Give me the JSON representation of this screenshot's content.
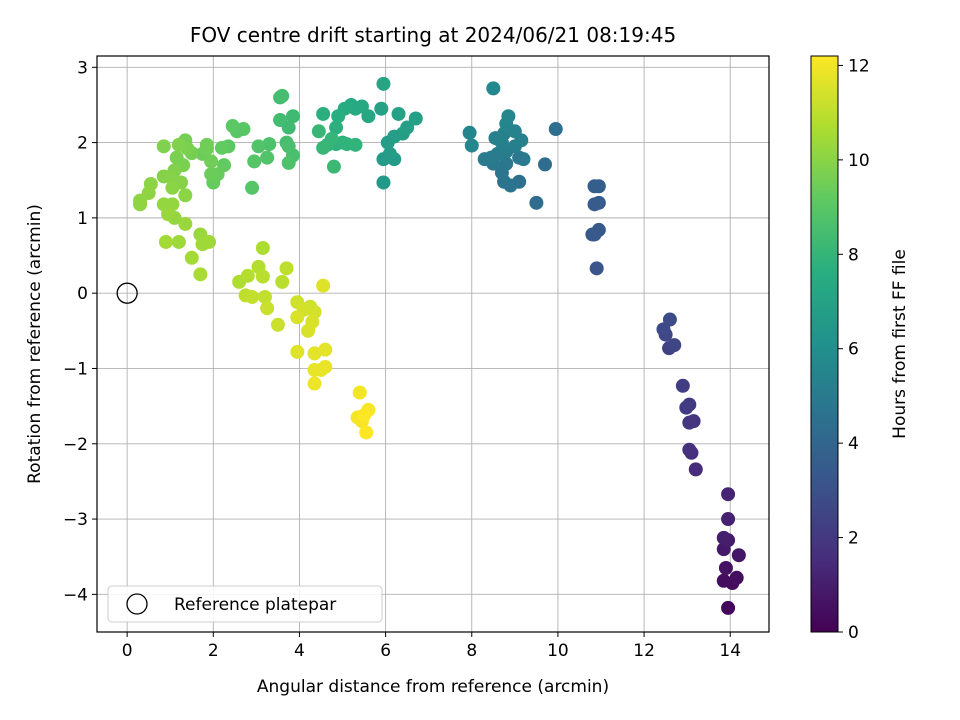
{
  "chart_data": {
    "type": "scatter",
    "title": "FOV centre drift starting at 2024/06/21 08:19:45",
    "xlabel": "Angular distance from reference (arcmin)",
    "ylabel": "Rotation from reference (arcmin)",
    "xlim": [
      -0.7,
      14.9
    ],
    "ylim": [
      -4.5,
      3.15
    ],
    "xticks": [
      0,
      2,
      4,
      6,
      8,
      10,
      12,
      14
    ],
    "yticks": [
      -4,
      -3,
      -2,
      -1,
      0,
      1,
      2,
      3
    ],
    "xtick_labels": [
      "0",
      "2",
      "4",
      "6",
      "8",
      "10",
      "12",
      "14"
    ],
    "ytick_labels": [
      "−4",
      "−3",
      "−2",
      "−1",
      "0",
      "1",
      "2",
      "3"
    ],
    "grid": true,
    "colormap": "viridis",
    "colorbar": {
      "label": "Hours from first FF file",
      "range": [
        0,
        12.2
      ],
      "ticks": [
        0,
        2,
        4,
        6,
        8,
        10,
        12
      ],
      "tick_labels": [
        "0",
        "2",
        "4",
        "6",
        "8",
        "10",
        "12"
      ]
    },
    "reference": {
      "name": "Reference platepar",
      "x": 0,
      "y": 0
    },
    "legend": {
      "location": "lower-left",
      "entries": [
        "Reference platepar"
      ]
    },
    "series": [
      {
        "name": "FOV centre",
        "points": [
          [
            13.95,
            -4.18,
            0.2
          ],
          [
            14.05,
            -3.85,
            0.3
          ],
          [
            13.85,
            -3.82,
            0.4
          ],
          [
            14.15,
            -3.78,
            0.5
          ],
          [
            13.9,
            -3.65,
            0.6
          ],
          [
            14.2,
            -3.48,
            0.7
          ],
          [
            13.85,
            -3.4,
            0.8
          ],
          [
            13.95,
            -3.28,
            0.9
          ],
          [
            13.85,
            -3.25,
            1.0
          ],
          [
            13.95,
            -3.0,
            1.1
          ],
          [
            13.95,
            -2.67,
            1.2
          ],
          [
            13.2,
            -2.34,
            1.5
          ],
          [
            13.1,
            -2.12,
            1.6
          ],
          [
            13.05,
            -2.08,
            1.7
          ],
          [
            13.15,
            -1.7,
            1.8
          ],
          [
            13.05,
            -1.72,
            1.9
          ],
          [
            13.05,
            -1.48,
            2.0
          ],
          [
            12.98,
            -1.52,
            2.1
          ],
          [
            12.9,
            -1.23,
            2.2
          ],
          [
            12.58,
            -0.73,
            2.4
          ],
          [
            12.7,
            -0.69,
            2.5
          ],
          [
            12.5,
            -0.55,
            2.6
          ],
          [
            12.45,
            -0.48,
            2.7
          ],
          [
            12.6,
            -0.35,
            2.8
          ],
          [
            10.9,
            0.33,
            3.2
          ],
          [
            10.85,
            0.78,
            3.3
          ],
          [
            10.95,
            0.84,
            3.4
          ],
          [
            10.8,
            0.78,
            3.4
          ],
          [
            10.85,
            1.18,
            3.5
          ],
          [
            10.95,
            1.2,
            3.5
          ],
          [
            10.85,
            1.42,
            3.6
          ],
          [
            10.95,
            1.42,
            3.6
          ],
          [
            9.5,
            1.2,
            4.3
          ],
          [
            9.7,
            1.71,
            4.3
          ],
          [
            9.95,
            2.18,
            4.4
          ],
          [
            9.1,
            1.48,
            4.5
          ],
          [
            8.9,
            1.43,
            4.6
          ],
          [
            8.75,
            1.48,
            4.6
          ],
          [
            8.7,
            1.6,
            4.7
          ],
          [
            8.8,
            1.72,
            4.8
          ],
          [
            8.5,
            1.72,
            4.9
          ],
          [
            8.3,
            1.78,
            5.0
          ],
          [
            8.45,
            1.8,
            5.0
          ],
          [
            9.2,
            1.78,
            5.0
          ],
          [
            9.1,
            1.8,
            4.9
          ],
          [
            8.6,
            1.85,
            5.1
          ],
          [
            8.8,
            1.88,
            5.1
          ],
          [
            9.0,
            1.95,
            5.2
          ],
          [
            8.7,
            2.0,
            5.2
          ],
          [
            9.15,
            2.03,
            5.3
          ],
          [
            8.55,
            2.06,
            5.3
          ],
          [
            8.75,
            2.12,
            5.3
          ],
          [
            9.0,
            2.15,
            5.4
          ],
          [
            7.95,
            2.13,
            5.5
          ],
          [
            8.0,
            1.96,
            5.6
          ],
          [
            8.8,
            2.25,
            5.5
          ],
          [
            8.85,
            2.35,
            5.6
          ],
          [
            8.5,
            2.72,
            5.7
          ],
          [
            5.95,
            1.47,
            6.5
          ],
          [
            5.95,
            1.78,
            6.6
          ],
          [
            6.2,
            1.78,
            6.6
          ],
          [
            6.1,
            1.85,
            6.7
          ],
          [
            6.05,
            2.0,
            6.7
          ],
          [
            6.2,
            2.08,
            6.8
          ],
          [
            6.4,
            2.12,
            6.8
          ],
          [
            6.5,
            2.2,
            6.9
          ],
          [
            6.7,
            2.32,
            6.9
          ],
          [
            6.3,
            2.38,
            7.0
          ],
          [
            5.9,
            2.45,
            7.0
          ],
          [
            5.95,
            2.78,
            7.1
          ],
          [
            5.6,
            2.35,
            7.2
          ],
          [
            5.45,
            2.48,
            7.3
          ],
          [
            5.3,
            2.45,
            7.4
          ],
          [
            5.2,
            2.5,
            7.4
          ],
          [
            5.05,
            2.45,
            7.5
          ],
          [
            4.9,
            2.35,
            7.6
          ],
          [
            4.55,
            2.38,
            7.7
          ],
          [
            4.85,
            2.2,
            7.7
          ],
          [
            4.85,
            1.98,
            7.8
          ],
          [
            5.0,
            2.0,
            7.8
          ],
          [
            5.1,
            1.98,
            7.9
          ],
          [
            5.3,
            1.97,
            7.9
          ],
          [
            4.75,
            2.05,
            8.0
          ],
          [
            4.65,
            1.97,
            8.0
          ],
          [
            4.55,
            1.93,
            8.1
          ],
          [
            4.45,
            2.15,
            8.1
          ],
          [
            4.8,
            1.68,
            8.2
          ],
          [
            3.85,
            2.35,
            8.3
          ],
          [
            3.75,
            2.2,
            8.3
          ],
          [
            3.55,
            2.3,
            8.4
          ],
          [
            3.55,
            2.6,
            8.4
          ],
          [
            3.6,
            2.62,
            8.5
          ],
          [
            3.7,
            2.0,
            8.5
          ],
          [
            3.75,
            1.95,
            8.6
          ],
          [
            3.85,
            1.83,
            8.6
          ],
          [
            3.75,
            1.73,
            8.7
          ],
          [
            3.3,
            1.98,
            8.7
          ],
          [
            3.25,
            1.8,
            8.8
          ],
          [
            3.05,
            1.95,
            8.8
          ],
          [
            2.95,
            1.75,
            8.9
          ],
          [
            2.9,
            1.4,
            8.9
          ],
          [
            2.7,
            2.18,
            9.0
          ],
          [
            2.55,
            2.15,
            9.0
          ],
          [
            2.45,
            2.22,
            9.1
          ],
          [
            2.35,
            1.95,
            9.1
          ],
          [
            2.2,
            1.93,
            9.2
          ],
          [
            2.25,
            1.7,
            9.2
          ],
          [
            2.1,
            1.58,
            9.3
          ],
          [
            2.0,
            1.47,
            9.3
          ],
          [
            1.95,
            1.58,
            9.4
          ],
          [
            1.75,
            1.85,
            9.4
          ],
          [
            1.85,
            1.92,
            9.5
          ],
          [
            1.85,
            1.97,
            9.5
          ],
          [
            1.95,
            1.75,
            9.5
          ],
          [
            1.5,
            1.86,
            9.6
          ],
          [
            1.35,
            2.03,
            9.6
          ],
          [
            1.4,
            1.92,
            9.7
          ],
          [
            1.3,
            1.7,
            9.7
          ],
          [
            1.15,
            1.8,
            9.7
          ],
          [
            1.2,
            1.97,
            9.8
          ],
          [
            0.85,
            1.95,
            9.8
          ],
          [
            1.1,
            1.63,
            9.8
          ],
          [
            1.0,
            1.55,
            9.9
          ],
          [
            0.85,
            1.55,
            9.9
          ],
          [
            1.25,
            1.47,
            9.9
          ],
          [
            1.35,
            1.3,
            10.0
          ],
          [
            1.05,
            1.4,
            10.0
          ],
          [
            0.55,
            1.45,
            10.0
          ],
          [
            0.5,
            1.33,
            10.1
          ],
          [
            0.3,
            1.23,
            10.1
          ],
          [
            0.3,
            1.18,
            10.1
          ],
          [
            0.85,
            1.18,
            10.2
          ],
          [
            1.05,
            1.18,
            10.2
          ],
          [
            1.1,
            1.0,
            10.2
          ],
          [
            0.95,
            1.05,
            10.3
          ],
          [
            1.35,
            0.92,
            10.3
          ],
          [
            1.7,
            0.78,
            10.3
          ],
          [
            1.75,
            0.65,
            10.4
          ],
          [
            1.9,
            0.68,
            10.4
          ],
          [
            1.2,
            0.68,
            10.4
          ],
          [
            0.9,
            0.68,
            10.5
          ],
          [
            1.5,
            0.47,
            10.5
          ],
          [
            1.7,
            0.25,
            10.6
          ],
          [
            3.15,
            0.6,
            10.7
          ],
          [
            2.6,
            0.15,
            10.7
          ],
          [
            2.8,
            0.23,
            10.8
          ],
          [
            3.05,
            0.35,
            10.8
          ],
          [
            3.15,
            0.22,
            10.9
          ],
          [
            3.6,
            0.15,
            10.9
          ],
          [
            3.7,
            0.33,
            11.0
          ],
          [
            2.75,
            -0.03,
            11.0
          ],
          [
            2.9,
            -0.05,
            11.1
          ],
          [
            3.2,
            -0.05,
            11.1
          ],
          [
            3.25,
            -0.2,
            11.2
          ],
          [
            3.5,
            -0.42,
            11.2
          ],
          [
            3.95,
            -0.12,
            11.3
          ],
          [
            4.25,
            -0.18,
            11.3
          ],
          [
            4.1,
            -0.22,
            11.4
          ],
          [
            4.35,
            -0.25,
            11.4
          ],
          [
            3.95,
            -0.32,
            11.5
          ],
          [
            4.3,
            -0.38,
            11.5
          ],
          [
            4.2,
            -0.5,
            11.5
          ],
          [
            4.55,
            0.1,
            11.6
          ],
          [
            3.95,
            -0.78,
            11.6
          ],
          [
            4.35,
            -0.8,
            11.7
          ],
          [
            4.6,
            -0.75,
            11.7
          ],
          [
            4.35,
            -1.02,
            11.8
          ],
          [
            4.5,
            -1.02,
            11.8
          ],
          [
            4.6,
            -0.98,
            11.8
          ],
          [
            4.35,
            -1.2,
            11.9
          ],
          [
            5.4,
            -1.32,
            12.0
          ],
          [
            5.35,
            -1.65,
            12.0
          ],
          [
            5.45,
            -1.7,
            12.1
          ],
          [
            5.6,
            -1.55,
            12.1
          ],
          [
            5.55,
            -1.85,
            12.2
          ],
          [
            5.5,
            -1.62,
            12.2
          ]
        ]
      }
    ]
  }
}
